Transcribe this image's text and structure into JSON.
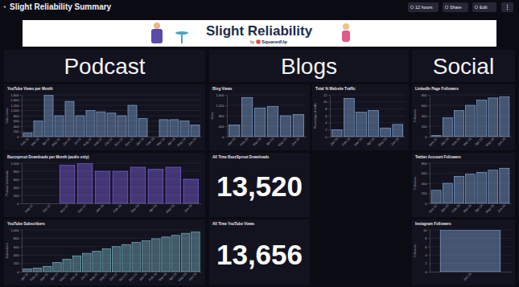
{
  "page": {
    "title": "Slight Reliability Summary",
    "buttons": [
      "12 hours",
      "Share",
      "Edit"
    ],
    "banner": {
      "title": "Slight Reliability",
      "byline": "by",
      "brand": "SquaredUp"
    },
    "sections": [
      "Podcast",
      "Blogs",
      "Social"
    ]
  },
  "kpis": [
    {
      "title": "All Time BuzzSprout Downloads",
      "value": "13,520"
    },
    {
      "title": "All Time YouTube Views",
      "value": "13,656"
    }
  ],
  "chart_data": [
    {
      "type": "bar",
      "title": "YouTube Views per Month",
      "ylabel": "Video views",
      "categories": [
        "Feb 22",
        "Mar 22",
        "Apr 22",
        "May 22",
        "Jun 22",
        "Jul 22",
        "Aug 22",
        "Sep 22",
        "Oct 22",
        "Nov 22",
        "Dec 22",
        "Jan 23",
        "Feb 23",
        "Mar 23",
        "Apr 23",
        "May 23",
        "Jun 23"
      ],
      "values": [
        150,
        600,
        1600,
        800,
        1350,
        800,
        1000,
        950,
        900,
        800,
        1200,
        700,
        0,
        650,
        650,
        600,
        450
      ],
      "color": "#8fb8ec",
      "ylim": [
        0,
        1600
      ],
      "yticks": [
        0,
        200,
        400,
        600,
        800,
        {
          "value": 1000,
          "label": "1,000"
        },
        {
          "value": 1200,
          "label": "1,200"
        },
        {
          "value": 1400,
          "label": "1,400"
        },
        {
          "value": 1600,
          "label": "1,600"
        }
      ],
      "grid": true
    },
    {
      "type": "bar",
      "title": "Buzzsprout Downloads per Month (audio only)",
      "ylabel": "Podcast downloads",
      "categories": [
        "Sep 22",
        "Oct 22",
        "Nov 22",
        "Dec 22",
        "Jan 23",
        "Feb 23",
        "Mar 23",
        "Apr 23",
        "May 23",
        "Jun 23"
      ],
      "values": [
        0,
        0,
        950,
        1000,
        800,
        800,
        900,
        850,
        900,
        600
      ],
      "color": "#8a6cf5",
      "ylim": [
        0,
        1000
      ],
      "yticks": [
        0,
        200,
        400,
        600,
        800,
        {
          "value": 1000,
          "label": "1,000"
        }
      ],
      "grid": true
    },
    {
      "type": "bar",
      "title": "YouTube Subscribers",
      "ylabel": "Subscribers",
      "categories": [
        "Jan 22",
        "Feb 22",
        "Mar 22",
        "Apr 22",
        "May 22",
        "Jun 22",
        "Jul 22",
        "Aug 22",
        "Sep 22",
        "Oct 22",
        "Nov 22",
        "Dec 22",
        "Jan 23",
        "Feb 23",
        "Mar 23",
        "Apr 23",
        "May 23",
        "Jun 23"
      ],
      "values": [
        70,
        90,
        130,
        220,
        300,
        380,
        440,
        490,
        550,
        600,
        650,
        700,
        740,
        790,
        830,
        870,
        920,
        950
      ],
      "color": "#86c9d6",
      "ylim": [
        0,
        1000
      ],
      "yticks": [
        0,
        200,
        400,
        600,
        800,
        {
          "value": 1000,
          "label": "1,000"
        }
      ],
      "grid": true
    },
    {
      "type": "bar",
      "title": "Blog Views",
      "ylabel": "Views",
      "categories": [
        "Jan 23",
        "Feb 23",
        "Mar 23",
        "Apr 23",
        "May 23",
        "Jun 23"
      ],
      "values": [
        450,
        1500,
        1100,
        1150,
        800,
        850
      ],
      "color": "#8fb8ec",
      "ylim": [
        0,
        1600
      ],
      "yticks": [
        0,
        400,
        800,
        {
          "value": 1200,
          "label": "1,200"
        },
        {
          "value": 1600,
          "label": "1,600"
        }
      ],
      "grid": true
    },
    {
      "type": "bar",
      "title": "Total % Website Traffic",
      "ylabel": "Percentage of traffic",
      "categories": [
        "Jan 23",
        "Feb 23",
        "Mar 23",
        "Apr 23",
        "May 23",
        "Jun 23"
      ],
      "values": [
        2,
        11,
        7,
        7.5,
        2.5,
        3.5
      ],
      "color": "#8fb8ec",
      "ylim": [
        0,
        12
      ],
      "yticks": [
        0,
        2,
        4,
        6,
        8,
        10,
        12
      ],
      "grid": true
    },
    {
      "type": "bar",
      "title": "LinkedIn Page Followers",
      "ylabel": "Followers",
      "categories": [
        "Dec 22",
        "Jan 23",
        "Feb 23",
        "Mar 23",
        "Apr 23",
        "May 23",
        "Jun 23"
      ],
      "values": [
        20,
        360,
        500,
        600,
        700,
        740,
        760
      ],
      "color": "#8fb8ec",
      "ylim": [
        0,
        800
      ],
      "yticks": [
        0,
        200,
        400,
        600,
        800
      ],
      "grid": true
    },
    {
      "type": "bar",
      "title": "Twitter Account Followers",
      "ylabel": "Followers",
      "categories": [
        "Dec 22",
        "Jan 23",
        "Feb 23",
        "Mar 23",
        "Apr 23",
        "May 23",
        "Jun 23"
      ],
      "values": [
        260,
        400,
        540,
        580,
        620,
        660,
        700
      ],
      "color": "#8fb8ec",
      "ylim": [
        0,
        800
      ],
      "yticks": [
        0,
        200,
        400,
        600,
        800
      ],
      "grid": true
    },
    {
      "type": "bar",
      "title": "Instagram Followers",
      "ylabel": "Followers",
      "categories": [
        "Jun 23"
      ],
      "values": [
        10
      ],
      "color": "#8fb8ec",
      "ylim": [
        0,
        10
      ],
      "yticks": [
        0,
        2,
        4,
        6,
        8,
        10
      ],
      "grid": true
    }
  ]
}
